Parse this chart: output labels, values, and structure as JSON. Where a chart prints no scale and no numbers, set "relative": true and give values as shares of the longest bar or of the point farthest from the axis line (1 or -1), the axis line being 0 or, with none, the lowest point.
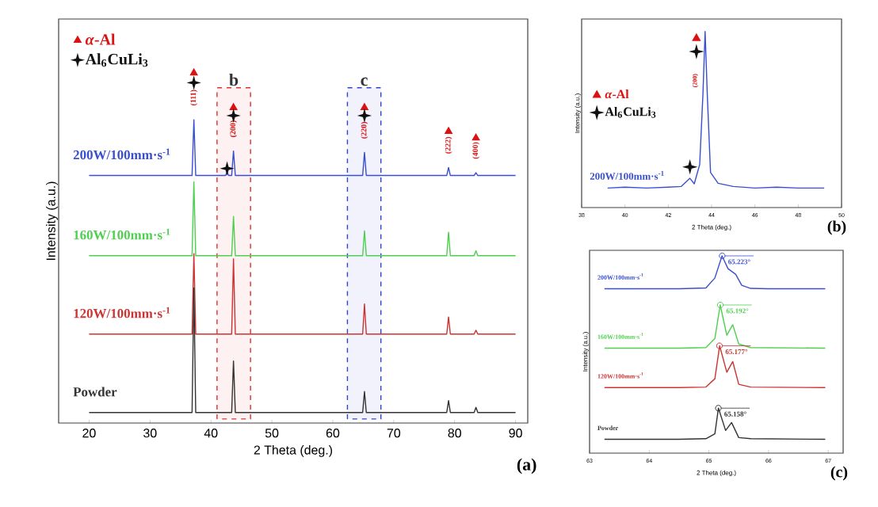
{
  "chart_data": [
    {
      "type": "line",
      "relative": true,
      "xlabel": "2 Theta (deg.)",
      "ylabel": "Intensity (a.u.)",
      "xlim": [
        15,
        92
      ],
      "xticks": [
        20,
        30,
        40,
        50,
        60,
        70,
        80,
        90
      ],
      "legend": "top left",
      "series": [
        {
          "name": "200W/100mm·s$^{-1}$",
          "color": "#3a4fd0",
          "x": [
            20,
            36.9,
            37.2,
            37.5,
            42.4,
            42.65,
            42.9,
            43.4,
            43.7,
            44.0,
            64.9,
            65.2,
            65.5,
            78.7,
            79.0,
            79.3,
            83.2,
            83.5,
            83.8,
            90
          ],
          "values": [
            0.707,
            0.707,
            0.866,
            0.707,
            0.707,
            0.717,
            0.707,
            0.707,
            0.777,
            0.707,
            0.707,
            0.773,
            0.707,
            0.707,
            0.73,
            0.707,
            0.707,
            0.715,
            0.707,
            0.707
          ]
        },
        {
          "name": "160W/100mm·s$^{-1}$",
          "color": "#4fcf4f",
          "x": [
            20,
            36.9,
            37.2,
            37.5,
            43.4,
            43.7,
            44.0,
            64.9,
            65.2,
            65.5,
            78.7,
            79.0,
            79.3,
            83.2,
            83.5,
            83.8,
            90
          ],
          "values": [
            0.478,
            0.478,
            0.689,
            0.478,
            0.478,
            0.59,
            0.478,
            0.478,
            0.549,
            0.478,
            0.478,
            0.545,
            0.478,
            0.478,
            0.492,
            0.478,
            0.478
          ]
        },
        {
          "name": "120W/100mm·s$^{-1}$",
          "color": "#cc3333",
          "x": [
            20,
            36.9,
            37.2,
            37.5,
            43.4,
            43.7,
            44.0,
            64.9,
            65.2,
            65.5,
            78.7,
            79.0,
            79.3,
            83.2,
            83.5,
            83.8,
            90
          ],
          "values": [
            0.254,
            0.254,
            0.484,
            0.254,
            0.254,
            0.469,
            0.254,
            0.254,
            0.34,
            0.254,
            0.254,
            0.303,
            0.254,
            0.254,
            0.265,
            0.254,
            0.254
          ]
        },
        {
          "name": "Powder",
          "color": "#333333",
          "x": [
            20,
            36.9,
            37.2,
            37.5,
            43.4,
            43.7,
            44.0,
            64.9,
            65.2,
            65.5,
            78.7,
            79.0,
            79.3,
            83.2,
            83.5,
            83.8,
            90
          ],
          "values": [
            0.03,
            0.03,
            0.386,
            0.03,
            0.03,
            0.177,
            0.03,
            0.03,
            0.09,
            0.03,
            0.03,
            0.064,
            0.03,
            0.03,
            0.045,
            0.03,
            0.03
          ]
        },
        {
          "name": "*α*-Al",
          "type": "scatter",
          "marker": "triangle",
          "color": "#dd1111",
          "x": [
            37.2,
            43.7,
            65.2,
            79.0,
            83.5
          ],
          "values": [
            1.0,
            0.901,
            0.901,
            0.833,
            0.814
          ]
        },
        {
          "name": "Al$_{6}$CuLi$_{3}$",
          "type": "scatter",
          "marker": "star",
          "color": "#111111",
          "x": [
            37.2,
            43.7,
            65.2,
            42.65
          ],
          "values": [
            0.972,
            0.878,
            0.878,
            0.727
          ]
        }
      ],
      "bands": [
        {
          "axis": "x",
          "from": 41,
          "to": 46.5,
          "label": "b",
          "color": "#dd3333"
        },
        {
          "axis": "x",
          "from": 62.4,
          "to": 67.9,
          "label": "c",
          "color": "#3344cc"
        }
      ],
      "annotations": [
        {
          "text": "(111)",
          "x": 37.2,
          "y": 0.866
        },
        {
          "text": "(200)",
          "x": 43.7,
          "y": 0.777
        },
        {
          "text": "(220)",
          "x": 65.2,
          "y": 0.773
        },
        {
          "text": "(222)",
          "x": 79.0,
          "y": 0.73
        },
        {
          "text": "(400)",
          "x": 83.5,
          "y": 0.715
        },
        "(a)"
      ]
    },
    {
      "type": "line",
      "relative": true,
      "xlabel": "2 Theta (deg.)",
      "ylabel": "Intensity (a.u.)",
      "xlim": [
        38,
        50
      ],
      "xticks": [
        38,
        40,
        42,
        44,
        46,
        48,
        50
      ],
      "legend": "left",
      "series": [
        {
          "name": "200W/100mm·s$^{-1}$",
          "color": "#3a4fd0",
          "x": [
            39.2,
            40,
            41,
            42,
            42.6,
            43.0,
            43.2,
            43.45,
            43.6,
            43.7,
            43.8,
            43.95,
            44.3,
            45,
            46,
            47,
            48,
            49.2
          ],
          "values": [
            0.111,
            0.116,
            0.111,
            0.116,
            0.12,
            0.166,
            0.135,
            0.244,
            0.644,
            1.0,
            0.644,
            0.2,
            0.138,
            0.12,
            0.111,
            0.116,
            0.111,
            0.111
          ]
        },
        {
          "name": "*α*-Al",
          "type": "scatter",
          "marker": "triangle",
          "color": "#dd1111",
          "x": [
            43.3
          ],
          "values": [
            0.961
          ]
        },
        {
          "name": "Al$_{6}$CuLi$_{3}$",
          "type": "scatter",
          "marker": "star",
          "color": "#111111",
          "x": [
            43.3,
            43.0
          ],
          "values": [
            0.886,
            0.231
          ]
        }
      ],
      "annotations": [
        {
          "text": "(200)",
          "x": 43.25,
          "y": 0.721
        },
        "(b)"
      ]
    },
    {
      "type": "line",
      "relative": true,
      "xlabel": "2 Theta (deg.)",
      "ylabel": "Intensity (a.u.)",
      "xlim": [
        63,
        67.25
      ],
      "xticks": [
        63,
        64,
        65,
        66,
        67
      ],
      "series": [
        {
          "name": "200W/100mm·s$^{-1}$",
          "color": "#3a4fd0",
          "x": [
            63.25,
            64.5,
            64.95,
            65.1,
            65.22,
            65.32,
            65.45,
            65.55,
            65.7,
            66.0,
            66.95
          ],
          "values": [
            0.833,
            0.833,
            0.837,
            0.888,
            1.0,
            0.935,
            0.906,
            0.851,
            0.835,
            0.833,
            0.833
          ]
        },
        {
          "name": "160W/100mm·s$^{-1}$",
          "color": "#4fcf4f",
          "x": [
            63.25,
            64.5,
            64.95,
            65.1,
            65.19,
            65.3,
            65.4,
            65.5,
            65.7,
            66.95
          ],
          "values": [
            0.532,
            0.532,
            0.535,
            0.581,
            0.751,
            0.598,
            0.651,
            0.553,
            0.535,
            0.532
          ]
        },
        {
          "name": "120W/100mm·s$^{-1}$",
          "color": "#cc3333",
          "x": [
            63.25,
            64.5,
            64.95,
            65.1,
            65.18,
            65.3,
            65.4,
            65.5,
            65.7,
            66.95
          ],
          "values": [
            0.332,
            0.332,
            0.335,
            0.377,
            0.544,
            0.41,
            0.464,
            0.349,
            0.335,
            0.332
          ]
        },
        {
          "name": "Powder",
          "color": "#333333",
          "x": [
            63.25,
            64.5,
            64.95,
            65.1,
            65.16,
            65.28,
            65.38,
            65.5,
            65.7,
            66.95
          ],
          "values": [
            0.07,
            0.07,
            0.073,
            0.098,
            0.228,
            0.115,
            0.155,
            0.079,
            0.073,
            0.07
          ]
        }
      ],
      "annotations": [
        {
          "text": "65.223°",
          "x": 65.223,
          "y": 1.0
        },
        {
          "text": "65.192°",
          "x": 65.192,
          "y": 0.751
        },
        {
          "text": "65.177°",
          "x": 65.177,
          "y": 0.544
        },
        {
          "text": "65.158°",
          "x": 65.158,
          "y": 0.228
        },
        "(c)"
      ]
    }
  ]
}
